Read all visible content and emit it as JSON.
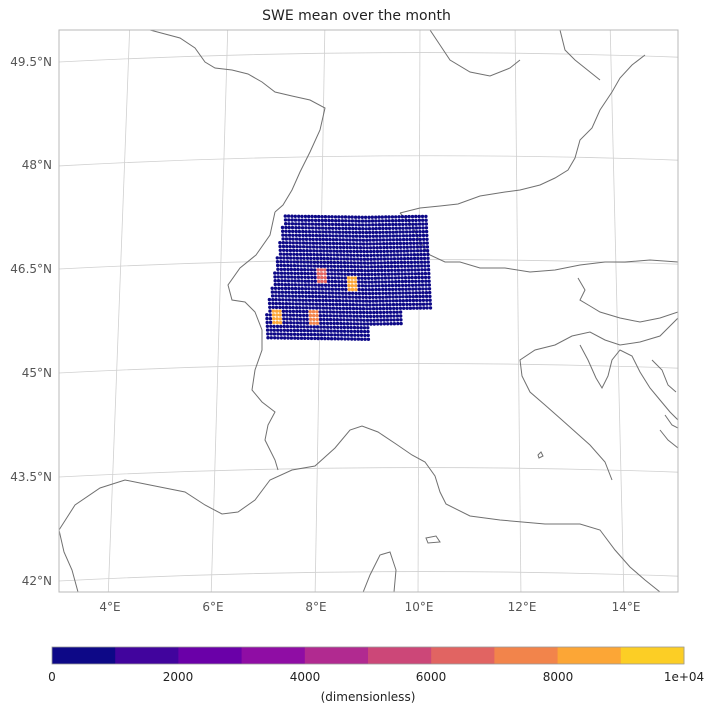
{
  "title": "SWE mean over the month",
  "map": {
    "lat_labels": [
      "49.5°N",
      "48°N",
      "46.5°N",
      "45°N",
      "43.5°N",
      "42°N"
    ],
    "lon_labels": [
      "4°E",
      "6°E",
      "8°E",
      "10°E",
      "12°E",
      "14°E"
    ]
  },
  "colorbar": {
    "label": "(dimensionless)",
    "tick_labels": [
      "0",
      "2000",
      "4000",
      "6000",
      "8000",
      "1e+04"
    ],
    "colors": [
      "#0d0887",
      "#41049d",
      "#6a00a8",
      "#8f0da4",
      "#b12a90",
      "#cc4778",
      "#e16462",
      "#f2844b",
      "#fca636",
      "#fcce25",
      "#f0f921"
    ]
  },
  "chart_data": {
    "type": "heatmap",
    "title": "SWE mean over the month",
    "variable_units": "(dimensionless)",
    "value_range": [
      0,
      10000
    ],
    "colormap": "plasma",
    "num_color_bins": 10,
    "lon_range": [
      3,
      15
    ],
    "lat_range": [
      41.8,
      50.2
    ],
    "gridlines": true,
    "data_region": {
      "lon_range": [
        7.0,
        10.2
      ],
      "lat_range": [
        45.5,
        47.3
      ],
      "predominant_value_range": [
        0,
        1000
      ],
      "high_value_spots": [
        {
          "lon": 8.1,
          "lat": 46.4,
          "value": 6500
        },
        {
          "lon": 8.7,
          "lat": 46.3,
          "value": 8500
        },
        {
          "lon": 7.2,
          "lat": 45.8,
          "value": 8000
        },
        {
          "lon": 7.9,
          "lat": 45.8,
          "value": 7500
        }
      ]
    }
  }
}
